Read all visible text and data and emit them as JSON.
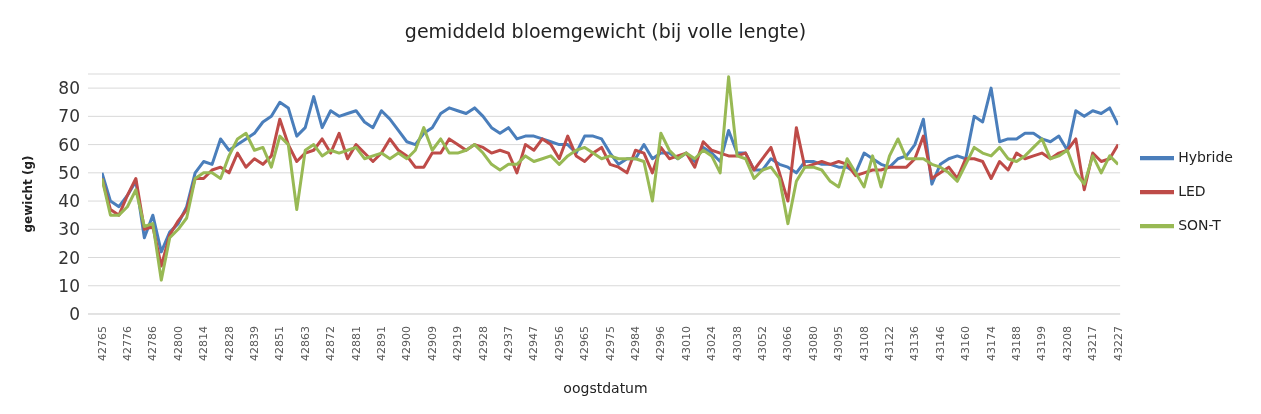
{
  "chart_data": {
    "type": "line",
    "title": "gemiddeld bloemgewicht (bij volle lengte)",
    "xlabel": "oogstdatum",
    "ylabel": "gewicht (g)",
    "categories": [
      "42765",
      null,
      null,
      "42776",
      null,
      null,
      "42786",
      null,
      null,
      "42800",
      null,
      null,
      "42814",
      null,
      null,
      "42828",
      null,
      null,
      "42839",
      null,
      null,
      "42851",
      null,
      null,
      "42863",
      null,
      null,
      "42872",
      null,
      null,
      "42881",
      null,
      null,
      "42891",
      null,
      null,
      "42900",
      null,
      null,
      "42909",
      null,
      null,
      "42919",
      null,
      null,
      "42928",
      null,
      null,
      "42937",
      null,
      null,
      "42947",
      null,
      null,
      "42956",
      null,
      null,
      "42965",
      null,
      null,
      "42975",
      null,
      null,
      "42984",
      null,
      null,
      "42996",
      null,
      null,
      "43010",
      null,
      null,
      "43024",
      null,
      null,
      "43038",
      null,
      null,
      "43052",
      null,
      null,
      "43066",
      null,
      null,
      "43080",
      null,
      null,
      "43095",
      null,
      null,
      "43108",
      null,
      null,
      "43122",
      null,
      null,
      "43136",
      null,
      null,
      "43146",
      null,
      null,
      "43160",
      null,
      null,
      "43174",
      null,
      null,
      "43188",
      null,
      null,
      "43199",
      null,
      null,
      "43208",
      null,
      null,
      "43217",
      null,
      null,
      "43227"
    ],
    "series": [
      {
        "name": "Hybride",
        "color": "#4a7ebb",
        "values": [
          50,
          40,
          38,
          42,
          47,
          27,
          35,
          22,
          29,
          32,
          38,
          50,
          54,
          53,
          62,
          58,
          60,
          62,
          64,
          68,
          70,
          75,
          73,
          63,
          66,
          77,
          66,
          72,
          70,
          71,
          72,
          68,
          66,
          72,
          69,
          65,
          61,
          60,
          64,
          66,
          71,
          73,
          72,
          71,
          73,
          70,
          66,
          64,
          66,
          62,
          63,
          63,
          62,
          61,
          60,
          60,
          57,
          63,
          63,
          62,
          57,
          53,
          55,
          55,
          60,
          55,
          57,
          57,
          55,
          57,
          54,
          59,
          57,
          54,
          65,
          57,
          57,
          51,
          51,
          55,
          53,
          52,
          50,
          54,
          54,
          53,
          53,
          52,
          52,
          50,
          57,
          55,
          53,
          52,
          55,
          56,
          60,
          69,
          46,
          53,
          55,
          56,
          55,
          70,
          68,
          80,
          61,
          62,
          62,
          64,
          64,
          62,
          61,
          63,
          58,
          72,
          70,
          72,
          71,
          73,
          67
        ]
      },
      {
        "name": "LED",
        "color": "#be4b48",
        "values": [
          48,
          37,
          35,
          42,
          48,
          30,
          31,
          17,
          28,
          33,
          37,
          48,
          48,
          51,
          52,
          50,
          57,
          52,
          55,
          53,
          56,
          69,
          60,
          54,
          57,
          58,
          62,
          57,
          64,
          55,
          60,
          57,
          54,
          57,
          62,
          58,
          56,
          52,
          52,
          57,
          57,
          62,
          60,
          58,
          60,
          59,
          57,
          58,
          57,
          50,
          60,
          58,
          62,
          60,
          55,
          63,
          56,
          54,
          57,
          59,
          53,
          52,
          50,
          58,
          57,
          50,
          59,
          55,
          56,
          57,
          52,
          61,
          58,
          57,
          56,
          56,
          57,
          51,
          55,
          59,
          50,
          40,
          66,
          52,
          53,
          54,
          53,
          54,
          53,
          49,
          50,
          51,
          51,
          52,
          52,
          52,
          55,
          63,
          48,
          50,
          52,
          48,
          55,
          55,
          54,
          48,
          54,
          51,
          57,
          55,
          56,
          57,
          55,
          57,
          58,
          62,
          44,
          57,
          54,
          55,
          60
        ]
      },
      {
        "name": "SON-T",
        "color": "#98b954",
        "values": [
          48,
          35,
          35,
          38,
          44,
          31,
          32,
          12,
          27,
          30,
          34,
          48,
          50,
          50,
          48,
          56,
          62,
          64,
          58,
          59,
          52,
          63,
          60,
          37,
          58,
          60,
          56,
          58,
          57,
          58,
          59,
          55,
          56,
          57,
          55,
          57,
          55,
          58,
          66,
          58,
          62,
          57,
          57,
          58,
          60,
          57,
          53,
          51,
          53,
          53,
          56,
          54,
          55,
          56,
          53,
          56,
          58,
          59,
          57,
          55,
          56,
          55,
          55,
          55,
          54,
          40,
          64,
          58,
          55,
          57,
          55,
          58,
          56,
          50,
          84,
          56,
          55,
          48,
          51,
          52,
          48,
          32,
          47,
          52,
          52,
          51,
          47,
          45,
          55,
          50,
          45,
          56,
          45,
          56,
          62,
          55,
          55,
          55,
          53,
          52,
          50,
          47,
          53,
          59,
          57,
          56,
          59,
          55,
          54,
          56,
          59,
          62,
          55,
          56,
          58,
          50,
          46,
          56,
          50,
          56,
          53
        ]
      }
    ],
    "ylim": [
      0,
      85
    ],
    "yticks": [
      0,
      10,
      20,
      30,
      40,
      50,
      60,
      70,
      80
    ],
    "grid": "y",
    "legend": "right",
    "marker": "none",
    "line_style": "solid"
  }
}
